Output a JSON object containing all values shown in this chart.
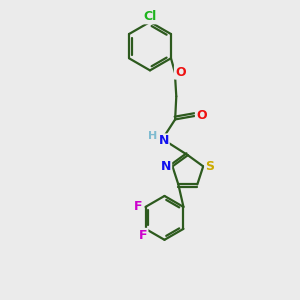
{
  "background_color": "#ebebeb",
  "bond_color": "#2d5a1e",
  "bond_width": 1.6,
  "atom_colors": {
    "Cl": "#1db31d",
    "O": "#ee1111",
    "N": "#1111ee",
    "H": "#7fbbd0",
    "S": "#ccaa00",
    "F": "#cc00cc",
    "C": "#2d5a1e"
  },
  "figsize": [
    3.0,
    3.0
  ],
  "dpi": 100,
  "xlim": [
    0,
    10
  ],
  "ylim": [
    0,
    13
  ]
}
